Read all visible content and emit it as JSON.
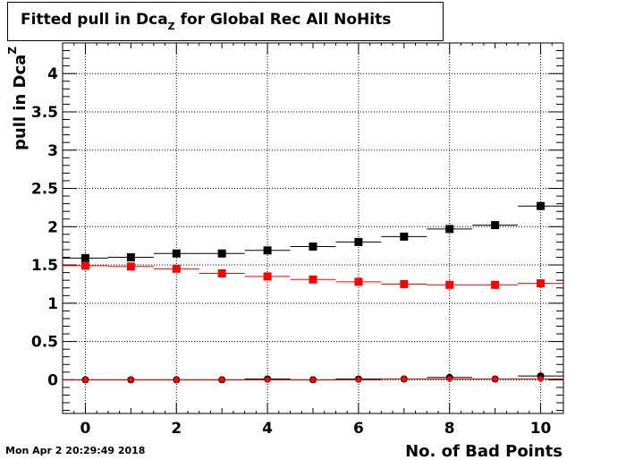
{
  "chart_data": {
    "type": "scatter",
    "title_main": "Fitted pull in Dca",
    "title_sub": "Z",
    "title_rest": " for Global Rec All NoHits",
    "ylabel_main": "pull in Dca",
    "ylabel_sub": "Z",
    "xlabel": "No. of Bad Points",
    "xlim": [
      -0.5,
      10.5
    ],
    "ylim": [
      -0.44,
      4.4
    ],
    "x_ticks": [
      0,
      2,
      4,
      6,
      8,
      10
    ],
    "x_tick_labels": [
      "0",
      "2",
      "4",
      "6",
      "8",
      "10"
    ],
    "y_ticks": [
      0,
      0.5,
      1,
      1.5,
      2,
      2.5,
      3,
      3.5,
      4
    ],
    "y_tick_labels": [
      "0",
      "0.5",
      "1",
      "1.5",
      "2",
      "2.5",
      "3",
      "3.5",
      "4"
    ],
    "grid": true,
    "series": [
      {
        "marker": "square",
        "color": "#000000",
        "x": [
          0,
          1,
          2,
          3,
          4,
          5,
          6,
          7,
          8,
          9,
          10
        ],
        "y": [
          1.59,
          1.6,
          1.65,
          1.65,
          1.69,
          1.74,
          1.8,
          1.87,
          1.97,
          2.02,
          2.27
        ]
      },
      {
        "marker": "square",
        "color": "#ff0000",
        "x": [
          0,
          1,
          2,
          3,
          4,
          5,
          6,
          7,
          8,
          9,
          10
        ],
        "y": [
          1.49,
          1.48,
          1.45,
          1.39,
          1.35,
          1.31,
          1.28,
          1.25,
          1.24,
          1.24,
          1.26
        ]
      },
      {
        "marker": "circle",
        "color": "#000000",
        "x": [
          0,
          1,
          2,
          3,
          4,
          5,
          6,
          7,
          8,
          9,
          10
        ],
        "y": [
          0.0,
          0.0,
          0.0,
          0.0,
          0.01,
          0.0,
          0.01,
          0.01,
          0.03,
          0.01,
          0.05
        ]
      },
      {
        "marker": "diamond",
        "color": "#ff0000",
        "x": [
          0,
          1,
          2,
          3,
          4,
          5,
          6,
          7,
          8,
          9,
          10
        ],
        "y": [
          0.0,
          0.0,
          0.0,
          0.0,
          0.0,
          0.0,
          0.0,
          0.01,
          0.01,
          0.01,
          0.01
        ]
      }
    ]
  },
  "timestamp": "Mon Apr  2 20:29:49 2018"
}
